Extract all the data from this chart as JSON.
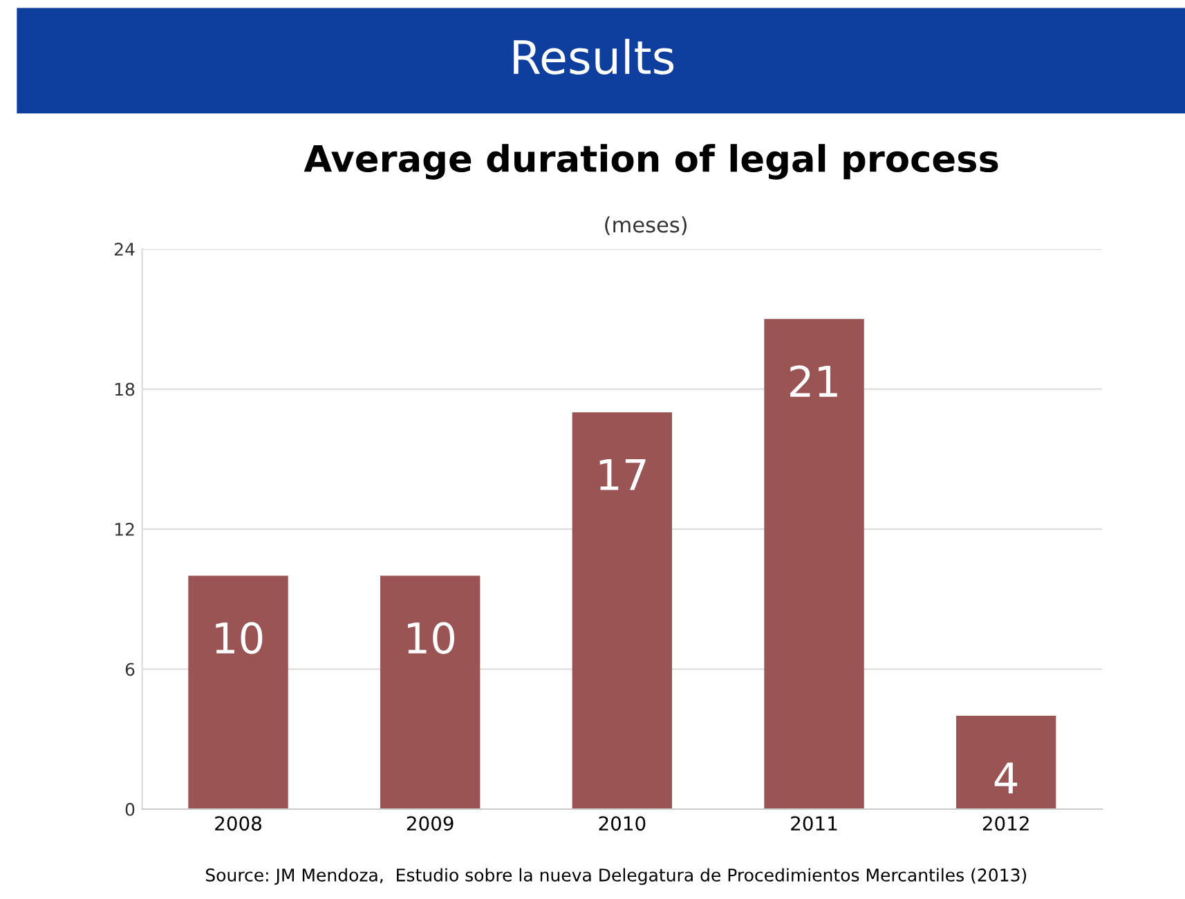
{
  "chart_data": {
    "type": "bar",
    "title": "Results",
    "subtitle": "Average duration of legal process",
    "annotations": [
      "(meses)",
      "Source: JM Mendoza,  Estudio sobre la nueva Delegatura de Procedimientos Mercantiles (2013)"
    ],
    "categories": [
      "2008",
      "2009",
      "2010",
      "2011",
      "2012"
    ],
    "values": [
      10,
      10,
      17,
      21,
      4
    ],
    "color": "#9b5454",
    "ylim": [
      0,
      24
    ],
    "yticks": [
      0,
      6,
      12,
      18,
      24
    ],
    "grid": "y",
    "data_labels": true
  }
}
